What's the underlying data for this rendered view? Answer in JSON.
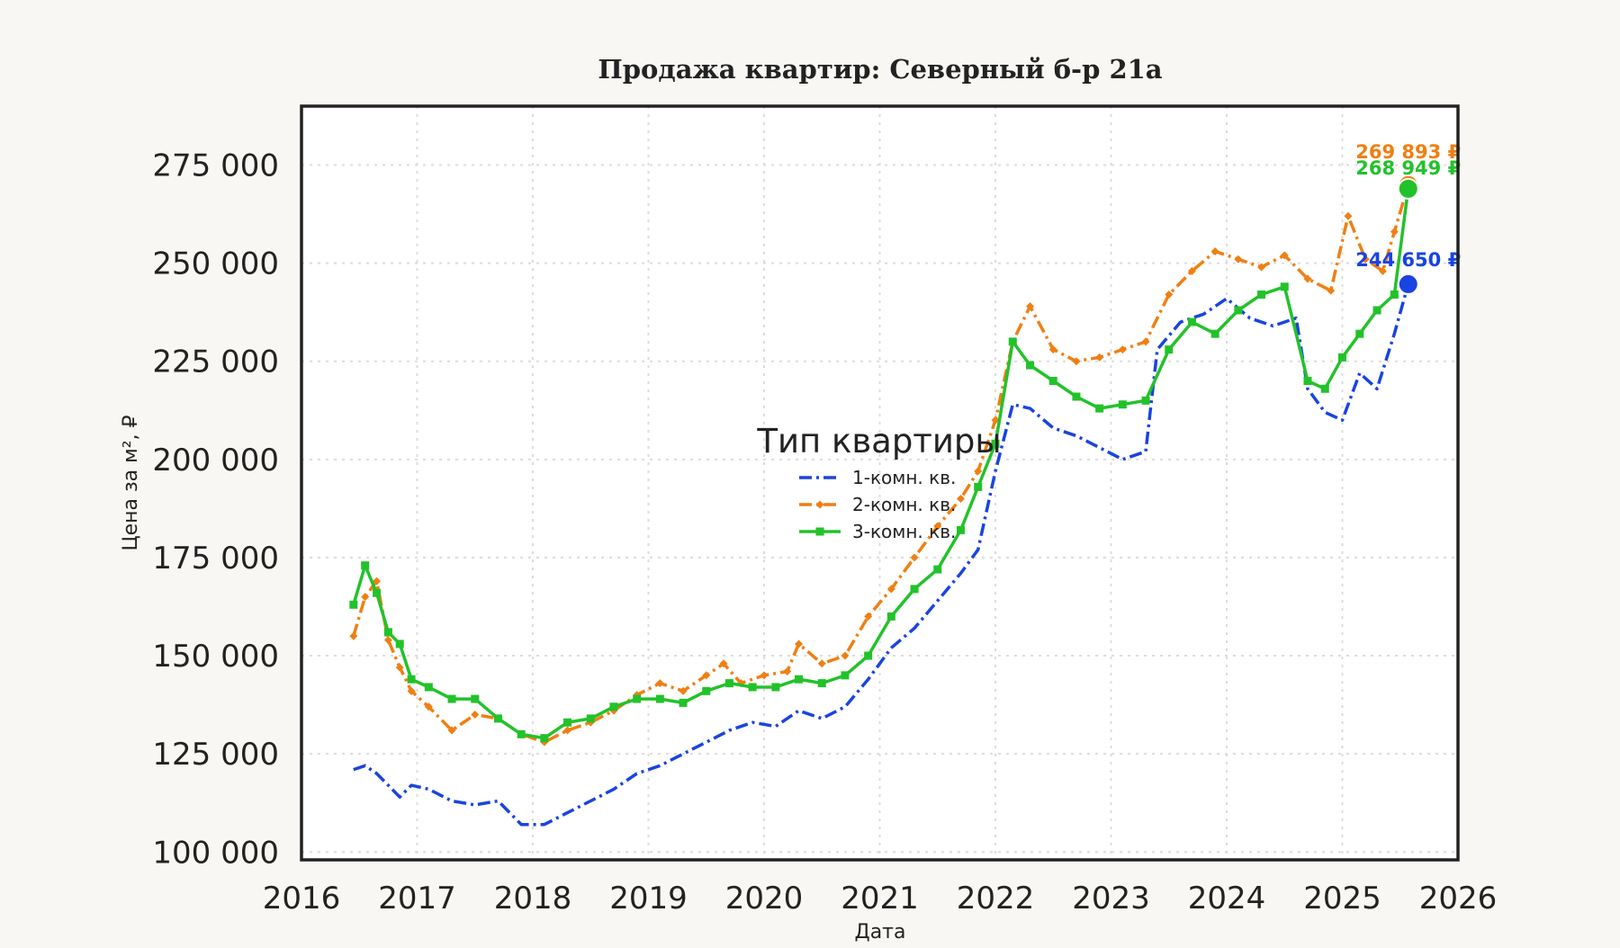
{
  "chart_data": {
    "type": "line",
    "title": "Продажа квартир: Северный б-р 21а",
    "xlabel": "Дата",
    "ylabel": "Цена за м², ₽",
    "xlim": [
      2016,
      2026
    ],
    "ylim": [
      98000,
      290000
    ],
    "x_ticks": [
      2016,
      2017,
      2018,
      2019,
      2020,
      2021,
      2022,
      2023,
      2024,
      2025,
      2026
    ],
    "y_ticks": [
      100000,
      125000,
      150000,
      175000,
      200000,
      225000,
      250000,
      275000
    ],
    "y_tick_labels": [
      "100 000",
      "125 000",
      "150 000",
      "175 000",
      "200 000",
      "225 000",
      "250 000",
      "275 000"
    ],
    "grid": true,
    "legend": {
      "title": "Тип квартиры",
      "placement": "center"
    },
    "series": [
      {
        "name": "1-комн. кв.",
        "color": "#1a44e0",
        "line_style": "dash-dot",
        "marker": "none",
        "x": [
          2016.45,
          2016.55,
          2016.65,
          2016.75,
          2016.85,
          2016.95,
          2017.1,
          2017.3,
          2017.5,
          2017.7,
          2017.9,
          2018.1,
          2018.3,
          2018.5,
          2018.7,
          2018.9,
          2019.1,
          2019.3,
          2019.5,
          2019.7,
          2019.9,
          2020.1,
          2020.3,
          2020.5,
          2020.7,
          2020.9,
          2021.1,
          2021.3,
          2021.5,
          2021.7,
          2021.85,
          2022.0,
          2022.15,
          2022.3,
          2022.5,
          2022.7,
          2022.9,
          2023.1,
          2023.3,
          2023.4,
          2023.6,
          2023.8,
          2024.0,
          2024.2,
          2024.4,
          2024.6,
          2024.7,
          2024.85,
          2025.0,
          2025.15,
          2025.3,
          2025.45,
          2025.57
        ],
        "y": [
          121000,
          122000,
          120000,
          117000,
          114000,
          117000,
          116000,
          113000,
          112000,
          113000,
          107000,
          107000,
          110000,
          113000,
          116000,
          120000,
          122000,
          125000,
          128000,
          131000,
          133000,
          132000,
          136000,
          134000,
          137000,
          144000,
          152000,
          157000,
          164000,
          171000,
          177000,
          197000,
          214000,
          213000,
          208000,
          206000,
          203000,
          200000,
          202000,
          228000,
          235000,
          237000,
          241000,
          236000,
          234000,
          236000,
          218000,
          212000,
          210000,
          222000,
          218000,
          232000,
          244650
        ]
      },
      {
        "name": "2-комн. кв.",
        "color": "#f07f12",
        "line_style": "dash-dot",
        "marker": "diamond",
        "x": [
          2016.45,
          2016.55,
          2016.65,
          2016.75,
          2016.85,
          2016.95,
          2017.1,
          2017.3,
          2017.5,
          2017.7,
          2017.9,
          2018.1,
          2018.3,
          2018.5,
          2018.7,
          2018.9,
          2019.1,
          2019.3,
          2019.5,
          2019.65,
          2019.8,
          2020.0,
          2020.2,
          2020.3,
          2020.5,
          2020.7,
          2020.9,
          2021.1,
          2021.3,
          2021.5,
          2021.7,
          2021.85,
          2022.0,
          2022.15,
          2022.3,
          2022.5,
          2022.7,
          2022.9,
          2023.1,
          2023.3,
          2023.5,
          2023.7,
          2023.9,
          2024.1,
          2024.3,
          2024.5,
          2024.7,
          2024.9,
          2025.05,
          2025.2,
          2025.35,
          2025.45,
          2025.57
        ],
        "y": [
          155000,
          165000,
          169000,
          154000,
          147000,
          141000,
          137000,
          131000,
          135000,
          134000,
          130000,
          128000,
          131000,
          133000,
          136000,
          140000,
          143000,
          141000,
          145000,
          148000,
          143000,
          145000,
          146000,
          153000,
          148000,
          150000,
          160000,
          167000,
          175000,
          183000,
          190000,
          197000,
          210000,
          230000,
          239000,
          228000,
          225000,
          226000,
          228000,
          230000,
          242000,
          248000,
          253000,
          251000,
          249000,
          252000,
          246000,
          243000,
          262000,
          251000,
          248000,
          258000,
          269893
        ]
      },
      {
        "name": "3-комн. кв.",
        "color": "#22c22a",
        "line_style": "solid",
        "marker": "square",
        "x": [
          2016.45,
          2016.55,
          2016.65,
          2016.75,
          2016.85,
          2016.95,
          2017.1,
          2017.3,
          2017.5,
          2017.7,
          2017.9,
          2018.1,
          2018.3,
          2018.5,
          2018.7,
          2018.9,
          2019.1,
          2019.3,
          2019.5,
          2019.7,
          2019.9,
          2020.1,
          2020.3,
          2020.5,
          2020.7,
          2020.9,
          2021.1,
          2021.3,
          2021.5,
          2021.7,
          2021.85,
          2022.0,
          2022.15,
          2022.3,
          2022.5,
          2022.7,
          2022.9,
          2023.1,
          2023.3,
          2023.5,
          2023.7,
          2023.9,
          2024.1,
          2024.3,
          2024.5,
          2024.7,
          2024.85,
          2025.0,
          2025.15,
          2025.3,
          2025.45,
          2025.57
        ],
        "y": [
          163000,
          173000,
          166000,
          156000,
          153000,
          144000,
          142000,
          139000,
          139000,
          134000,
          130000,
          129000,
          133000,
          134000,
          137000,
          139000,
          139000,
          138000,
          141000,
          143000,
          142000,
          142000,
          144000,
          143000,
          145000,
          150000,
          160000,
          167000,
          172000,
          182000,
          193000,
          204000,
          230000,
          224000,
          220000,
          216000,
          213000,
          214000,
          215000,
          228000,
          235000,
          232000,
          238000,
          242000,
          244000,
          220000,
          218000,
          226000,
          232000,
          238000,
          242000,
          268949
        ]
      }
    ],
    "annotations": [
      {
        "text": "244 650 ₽",
        "series": "1-комн. кв.",
        "x": 2025.57,
        "y": 244650
      },
      {
        "text": "269 893 ₽",
        "series": "2-комн. кв.",
        "x": 2025.57,
        "y": 269893
      },
      {
        "text": "268 949 ₽",
        "series": "3-комн. кв.",
        "x": 2025.57,
        "y": 268949
      }
    ]
  }
}
